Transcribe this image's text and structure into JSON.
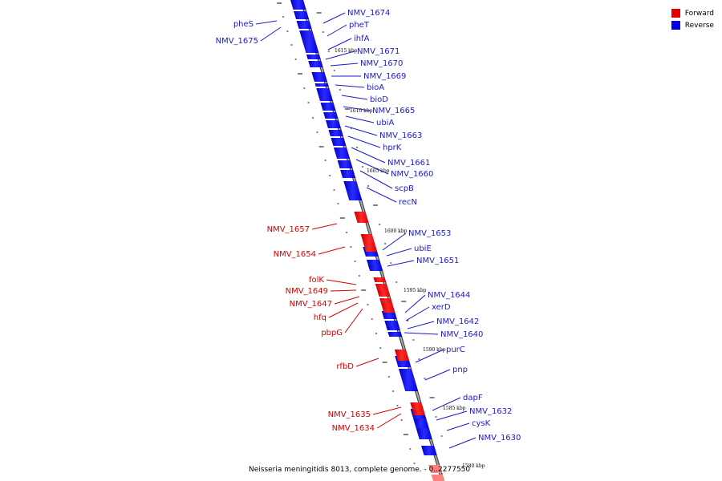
{
  "colors": {
    "forward": "#ff0000",
    "reverse": "#0000ff",
    "backbone": "#a6a6a6",
    "backbone_edge": "#333333",
    "leader": "#000000"
  },
  "legend": [
    {
      "label": "Forward",
      "color": "#ff0000"
    },
    {
      "label": "Reverse",
      "color": "#0000ff"
    }
  ],
  "caption": "Neisseria meningitidis 8013, complete genome. - 0..2277550",
  "kbp_marks": [
    "1615 kbp",
    "1610 kbp",
    "1605 kbp",
    "1600 kbp",
    "1595 kbp",
    "1590 kbp",
    "1585 kbp",
    "1580 kbp"
  ],
  "reverse_labels": [
    "NMV_1674",
    "pheT",
    "ihfA",
    "NMV_1671",
    "NMV_1670",
    "NMV_1669",
    "bioA",
    "bioD",
    "NMV_1665",
    "ubiA",
    "NMV_1663",
    "hprK",
    "NMV_1661",
    "NMV_1660",
    "scpB",
    "recN",
    "NMV_1653",
    "ubiE",
    "NMV_1651",
    "NMV_1644",
    "xerD",
    "NMV_1642",
    "NMV_1640",
    "purC",
    "pnp",
    "dapF",
    "NMV_1632",
    "cysK",
    "NMV_1630"
  ],
  "left_labels": [
    "pheS",
    "NMV_1675"
  ],
  "forward_labels": [
    "NMV_1657",
    "NMV_1654",
    "folK",
    "NMV_1649",
    "NMV_1647",
    "hfq",
    "pbpG",
    "rfbD",
    "NMV_1635",
    "NMV_1634"
  ]
}
